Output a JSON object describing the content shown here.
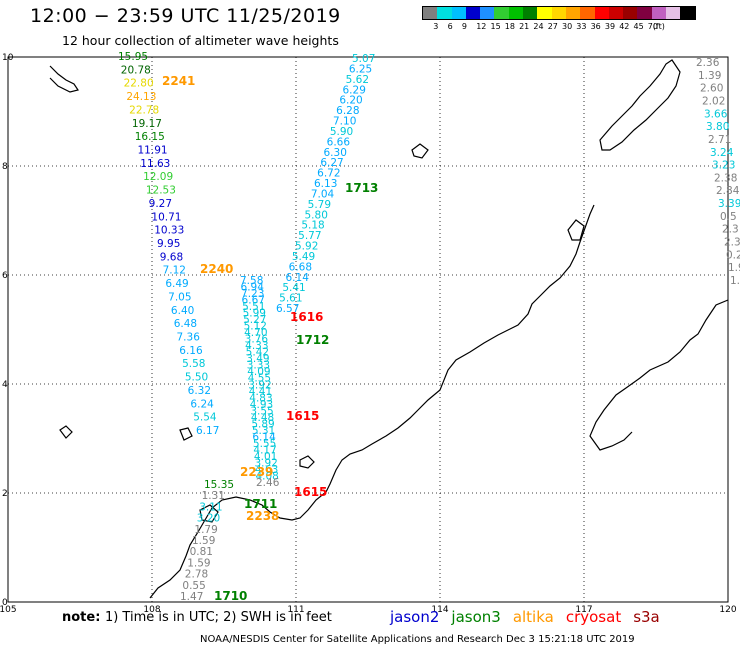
{
  "header": {
    "title": "12:00 − 23:59 UTC 11/25/2019",
    "subtitle": "12 hour collection of altimeter wave heights"
  },
  "color_scale": {
    "colors": [
      "#808080",
      "#00e0e0",
      "#00bfff",
      "#0000cd",
      "#1e90ff",
      "#32cd32",
      "#00c000",
      "#008000",
      "#ffff00",
      "#ffd700",
      "#ffa500",
      "#ff6600",
      "#ff0000",
      "#cc0000",
      "#990000",
      "#800040",
      "#c060c0",
      "#e6c0e6",
      "#000000"
    ],
    "labels": [
      "3",
      "6",
      "9",
      "12",
      "15",
      "18",
      "21",
      "24",
      "27",
      "30",
      "33",
      "36",
      "39",
      "42",
      "45",
      "70",
      "(ft)"
    ]
  },
  "axes": {
    "lon_ticks": [
      "105",
      "108",
      "111",
      "114",
      "117",
      "120"
    ],
    "lat_ticks": [
      "0",
      "2",
      "4",
      "6",
      "8",
      "10"
    ]
  },
  "passes": [
    {
      "label": "2241",
      "color": "#ff9900"
    },
    {
      "label": "2240",
      "color": "#ff9900"
    },
    {
      "label": "1713",
      "color": "#008000"
    },
    {
      "label": "1616",
      "color": "#ff0000"
    },
    {
      "label": "1712",
      "color": "#008000"
    },
    {
      "label": "1615",
      "color": "#ff0000"
    },
    {
      "label": "2239",
      "color": "#ff9900"
    },
    {
      "label": "1615",
      "color": "#ff0000"
    },
    {
      "label": "1711",
      "color": "#008000"
    },
    {
      "label": "2238",
      "color": "#ff9900"
    },
    {
      "label": "1710",
      "color": "#008000"
    }
  ],
  "tracks": {
    "left": [
      "15.95",
      "20.78",
      "22.80",
      "24.13",
      "22.78",
      "19.17",
      "16.15",
      "11.91",
      "11.63",
      "12.09",
      "12.53",
      "9.27",
      "10.71",
      "10.33",
      "9.95",
      "9.68",
      "7.12",
      "6.49",
      "7.05",
      "6.40",
      "6.48",
      "7.36",
      "6.16",
      "5.58",
      "5.50",
      "6.32",
      "6.24",
      "5.54",
      "6.17"
    ],
    "right": [
      "5.07",
      "6.25",
      "5.62",
      "6.29",
      "6.20",
      "6.28",
      "7.10",
      "5.90",
      "6.66",
      "6.30",
      "6.27",
      "6.72",
      "6.13",
      "7.04",
      "5.79",
      "5.80",
      "5.18",
      "5.77",
      "5.92",
      "5.49",
      "6.68",
      "6.14",
      "5.41",
      "5.61",
      "6.57"
    ],
    "middle": [
      "7.58",
      "6.94",
      "7.23",
      "6.67",
      "5.51",
      "5.99",
      "5.27",
      "5.12",
      "4.70",
      "3.76",
      "4.33",
      "5.42",
      "3.49",
      "3.33",
      "4.09",
      "4.55",
      "3.92",
      "4.41",
      "4.83",
      "4.93",
      "3.55",
      "4.48",
      "5.89",
      "5.31",
      "6.14",
      "5.55",
      "4.17",
      "4.01",
      "3.92",
      "4.63",
      "4.08",
      "2.46"
    ],
    "east_edge": [
      "2.36",
      "1.39",
      "2.60",
      "2.02",
      "3.66",
      "3.80",
      "2.71",
      "3.24",
      "3.23",
      "2.38",
      "2.84",
      "3.39",
      "0.5",
      "2.3",
      "2.3",
      "0.2",
      "1.9",
      "1.5"
    ],
    "south": [
      "15.35",
      "1.31",
      "3.11",
      "3.20",
      "1.79",
      "1.59",
      "0.81",
      "1.59",
      "2.78",
      "0.55",
      "1.47"
    ]
  },
  "footer": {
    "note": "note:",
    "note_text": "1) Time is in UTC; 2) SWH is in feet",
    "satellites": [
      {
        "name": "jason2",
        "color": "#0000cd"
      },
      {
        "name": "jason3",
        "color": "#008000"
      },
      {
        "name": "altika",
        "color": "#ff9900"
      },
      {
        "name": "cryosat",
        "color": "#ff0000"
      },
      {
        "name": "s3a",
        "color": "#990000"
      }
    ],
    "credits": "NOAA/NESDIS Center for Satellite Applications and Research    Dec  3 15:21:18 UTC 2019"
  }
}
